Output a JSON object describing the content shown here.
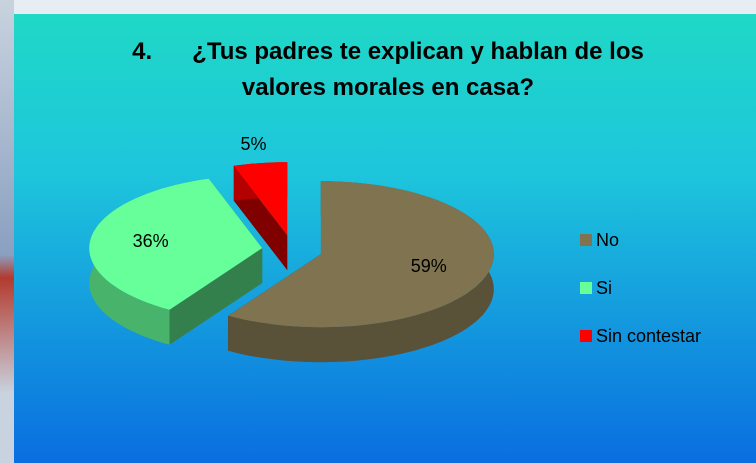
{
  "chart_data": {
    "type": "pie3d",
    "title": "4.      ¿Tus padres te explican y hablan de los valores morales en casa?",
    "categories": [
      "No",
      "Si",
      "Sin contestar"
    ],
    "values": [
      59,
      36,
      5
    ],
    "value_labels": [
      "59%",
      "36%",
      "5%"
    ],
    "colors": [
      "#7f7350",
      "#66ff99",
      "#ff0000"
    ],
    "legend": "right"
  }
}
